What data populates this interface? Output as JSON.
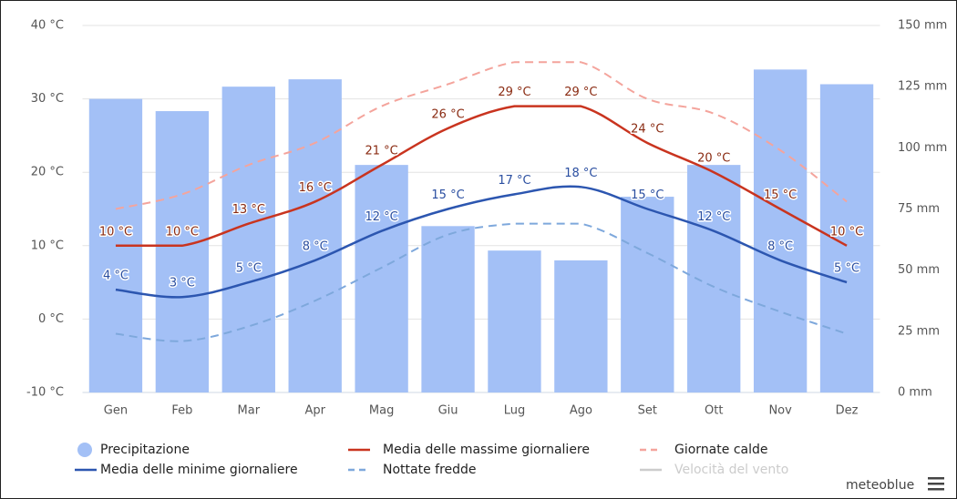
{
  "chart_data": {
    "type": "combo",
    "categories": [
      "Gen",
      "Feb",
      "Mar",
      "Apr",
      "Mag",
      "Giu",
      "Lug",
      "Ago",
      "Set",
      "Ott",
      "Nov",
      "Dez"
    ],
    "ylim": [
      -10,
      40
    ],
    "yticks": [
      {
        "value": -10,
        "label": "-10 °C"
      },
      {
        "value": 0,
        "label": "0 °C"
      },
      {
        "value": 10,
        "label": "10 °C"
      },
      {
        "value": 20,
        "label": "20 °C"
      },
      {
        "value": 30,
        "label": "30 °C"
      },
      {
        "value": 40,
        "label": "40 °C"
      }
    ],
    "y2lim": [
      0,
      150
    ],
    "y2ticks": [
      {
        "value": 0,
        "label": "0 mm"
      },
      {
        "value": 25,
        "label": "25 mm"
      },
      {
        "value": 50,
        "label": "50 mm"
      },
      {
        "value": 75,
        "label": "75 mm"
      },
      {
        "value": 100,
        "label": "100 mm"
      },
      {
        "value": 125,
        "label": "125 mm"
      },
      {
        "value": 150,
        "label": "150 mm"
      }
    ],
    "grid": true,
    "series": [
      {
        "name": "Precipitazione",
        "type": "bar",
        "axis": "y2",
        "color": "#a3c0f6",
        "values": [
          120,
          115,
          125,
          128,
          93,
          68,
          58,
          54,
          80,
          93,
          132,
          126
        ]
      },
      {
        "name": "Media delle massime giornaliere",
        "type": "line",
        "color": "#c9341f",
        "label_color": "#8a2b12",
        "values": [
          10,
          10,
          13,
          16,
          21,
          26,
          29,
          29,
          24,
          20,
          15,
          10
        ],
        "value_labels": [
          "10 °C",
          "10 °C",
          "13 °C",
          "16 °C",
          "21 °C",
          "26 °C",
          "29 °C",
          "29 °C",
          "24 °C",
          "20 °C",
          "15 °C",
          "10 °C"
        ]
      },
      {
        "name": "Giornate calde",
        "type": "line",
        "dash": true,
        "color": "#f4a49c",
        "values": [
          15,
          17,
          21,
          24,
          29,
          32,
          35,
          35,
          30,
          28,
          23,
          16
        ]
      },
      {
        "name": "Media delle minime giornaliere",
        "type": "line",
        "color": "#2c56b0",
        "label_color": "#2a4ea0",
        "values": [
          4,
          3,
          5,
          8,
          12,
          15,
          17,
          18,
          15,
          12,
          8,
          5
        ],
        "value_labels": [
          "4 °C",
          "3 °C",
          "5 °C",
          "8 °C",
          "12 °C",
          "15 °C",
          "17 °C",
          "18 °C",
          "15 °C",
          "12 °C",
          "8 °C",
          "5 °C"
        ]
      },
      {
        "name": "Nottate fredde",
        "type": "line",
        "dash": true,
        "color": "#7ea8dc",
        "values": [
          -2,
          -3,
          -1,
          2.5,
          7,
          11.5,
          13,
          13,
          9,
          4.4,
          1,
          -2
        ]
      },
      {
        "name": "Velocità del vento",
        "type": "hidden",
        "color": "#cccccc"
      }
    ],
    "credit": "meteoblue"
  }
}
